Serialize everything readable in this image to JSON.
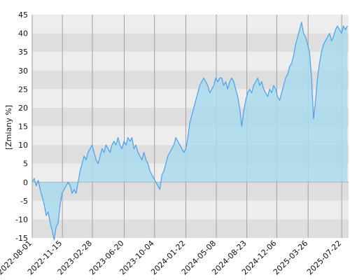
{
  "chart_data": {
    "type": "area",
    "ylabel": "[Zmiany %]",
    "ylim": [
      -15,
      45
    ],
    "y_ticks": [
      45,
      40,
      35,
      30,
      25,
      20,
      15,
      10,
      5,
      0,
      -5,
      -10,
      -15
    ],
    "x_tick_labels": [
      "2022-08-01",
      "2022-11-15",
      "2023-02-28",
      "2023-06-20",
      "2023-10-04",
      "2024-01-22",
      "2024-05-08",
      "2024-08-23",
      "2024-12-06",
      "2025-03-26",
      "2025-07-22"
    ],
    "x_range": [
      "2022-08-01",
      "2025-08-15"
    ],
    "grid": true,
    "colors": {
      "line": "#4c9fe8",
      "fill": "#a9d9ec",
      "band_light": "#ededed",
      "band_dark": "#dedede",
      "zero_line": "#a8b8c0",
      "v_grid": "#a0a0a0"
    },
    "series": [
      {
        "points": [
          [
            "2022-08-01",
            0
          ],
          [
            "2022-08-08",
            1
          ],
          [
            "2022-08-15",
            -1
          ],
          [
            "2022-08-22",
            0.5
          ],
          [
            "2022-08-29",
            -2
          ],
          [
            "2022-09-05",
            -4
          ],
          [
            "2022-09-12",
            -6
          ],
          [
            "2022-09-19",
            -9
          ],
          [
            "2022-09-26",
            -8
          ],
          [
            "2022-10-03",
            -11
          ],
          [
            "2022-10-10",
            -13
          ],
          [
            "2022-10-17",
            -15.5
          ],
          [
            "2022-10-24",
            -12
          ],
          [
            "2022-10-31",
            -11
          ],
          [
            "2022-11-07",
            -6
          ],
          [
            "2022-11-14",
            -3
          ],
          [
            "2022-11-21",
            -2
          ],
          [
            "2022-11-28",
            -1
          ],
          [
            "2022-12-05",
            0
          ],
          [
            "2022-12-12",
            -1
          ],
          [
            "2022-12-19",
            -3
          ],
          [
            "2022-12-26",
            -2
          ],
          [
            "2023-01-02",
            -3
          ],
          [
            "2023-01-09",
            0
          ],
          [
            "2023-01-16",
            3
          ],
          [
            "2023-01-23",
            5
          ],
          [
            "2023-01-30",
            7
          ],
          [
            "2023-02-06",
            6
          ],
          [
            "2023-02-13",
            8
          ],
          [
            "2023-02-20",
            9
          ],
          [
            "2023-02-27",
            10
          ],
          [
            "2023-03-06",
            8
          ],
          [
            "2023-03-13",
            6
          ],
          [
            "2023-03-20",
            5
          ],
          [
            "2023-03-27",
            7
          ],
          [
            "2023-04-03",
            9
          ],
          [
            "2023-04-10",
            8
          ],
          [
            "2023-04-17",
            10
          ],
          [
            "2023-04-24",
            9
          ],
          [
            "2023-05-01",
            8
          ],
          [
            "2023-05-08",
            10
          ],
          [
            "2023-05-15",
            11
          ],
          [
            "2023-05-22",
            10
          ],
          [
            "2023-05-29",
            12
          ],
          [
            "2023-06-05",
            10
          ],
          [
            "2023-06-12",
            9
          ],
          [
            "2023-06-19",
            11
          ],
          [
            "2023-06-26",
            10
          ],
          [
            "2023-07-03",
            12
          ],
          [
            "2023-07-10",
            11
          ],
          [
            "2023-07-17",
            12
          ],
          [
            "2023-07-24",
            9
          ],
          [
            "2023-07-31",
            10
          ],
          [
            "2023-08-07",
            8
          ],
          [
            "2023-08-14",
            7
          ],
          [
            "2023-08-21",
            6
          ],
          [
            "2023-08-28",
            8
          ],
          [
            "2023-09-04",
            6
          ],
          [
            "2023-09-11",
            5
          ],
          [
            "2023-09-18",
            3
          ],
          [
            "2023-09-25",
            2
          ],
          [
            "2023-10-02",
            1
          ],
          [
            "2023-10-09",
            0
          ],
          [
            "2023-10-16",
            -1
          ],
          [
            "2023-10-23",
            -2
          ],
          [
            "2023-10-30",
            2
          ],
          [
            "2023-11-06",
            3
          ],
          [
            "2023-11-13",
            5
          ],
          [
            "2023-11-20",
            7
          ],
          [
            "2023-11-27",
            8
          ],
          [
            "2023-12-04",
            9
          ],
          [
            "2023-12-11",
            10
          ],
          [
            "2023-12-18",
            12
          ],
          [
            "2023-12-25",
            11
          ],
          [
            "2024-01-01",
            10
          ],
          [
            "2024-01-08",
            9
          ],
          [
            "2024-01-15",
            8
          ],
          [
            "2024-01-22",
            9
          ],
          [
            "2024-01-29",
            12
          ],
          [
            "2024-02-05",
            16
          ],
          [
            "2024-02-12",
            18
          ],
          [
            "2024-02-19",
            20
          ],
          [
            "2024-02-26",
            22
          ],
          [
            "2024-03-04",
            24
          ],
          [
            "2024-03-11",
            26
          ],
          [
            "2024-03-18",
            27
          ],
          [
            "2024-03-25",
            28
          ],
          [
            "2024-04-01",
            27
          ],
          [
            "2024-04-08",
            26
          ],
          [
            "2024-04-15",
            24
          ],
          [
            "2024-04-22",
            25
          ],
          [
            "2024-04-29",
            26
          ],
          [
            "2024-05-06",
            28
          ],
          [
            "2024-05-13",
            27
          ],
          [
            "2024-05-20",
            28
          ],
          [
            "2024-05-27",
            28
          ],
          [
            "2024-06-03",
            26
          ],
          [
            "2024-06-10",
            27
          ],
          [
            "2024-06-17",
            25
          ],
          [
            "2024-06-24",
            27
          ],
          [
            "2024-07-01",
            28
          ],
          [
            "2024-07-08",
            27
          ],
          [
            "2024-07-15",
            25
          ],
          [
            "2024-07-22",
            23
          ],
          [
            "2024-07-29",
            20
          ],
          [
            "2024-08-05",
            15
          ],
          [
            "2024-08-12",
            19
          ],
          [
            "2024-08-19",
            22
          ],
          [
            "2024-08-26",
            24
          ],
          [
            "2024-09-02",
            25
          ],
          [
            "2024-09-09",
            24
          ],
          [
            "2024-09-16",
            26
          ],
          [
            "2024-09-23",
            27
          ],
          [
            "2024-09-30",
            28
          ],
          [
            "2024-10-07",
            26
          ],
          [
            "2024-10-14",
            27
          ],
          [
            "2024-10-21",
            25
          ],
          [
            "2024-10-28",
            24
          ],
          [
            "2024-11-04",
            23
          ],
          [
            "2024-11-11",
            25
          ],
          [
            "2024-11-18",
            24
          ],
          [
            "2024-11-25",
            26
          ],
          [
            "2024-12-02",
            25
          ],
          [
            "2024-12-09",
            23
          ],
          [
            "2024-12-16",
            22
          ],
          [
            "2024-12-23",
            24
          ],
          [
            "2024-12-30",
            26
          ],
          [
            "2025-01-06",
            28
          ],
          [
            "2025-01-13",
            29
          ],
          [
            "2025-01-20",
            31
          ],
          [
            "2025-01-27",
            32
          ],
          [
            "2025-02-03",
            34
          ],
          [
            "2025-02-10",
            37
          ],
          [
            "2025-02-17",
            39
          ],
          [
            "2025-02-24",
            41
          ],
          [
            "2025-03-03",
            43
          ],
          [
            "2025-03-10",
            40
          ],
          [
            "2025-03-17",
            39
          ],
          [
            "2025-03-24",
            37
          ],
          [
            "2025-03-31",
            35
          ],
          [
            "2025-04-07",
            28
          ],
          [
            "2025-04-14",
            17
          ],
          [
            "2025-04-21",
            22
          ],
          [
            "2025-04-28",
            28
          ],
          [
            "2025-05-05",
            32
          ],
          [
            "2025-05-12",
            35
          ],
          [
            "2025-05-19",
            37
          ],
          [
            "2025-05-26",
            38
          ],
          [
            "2025-06-02",
            39
          ],
          [
            "2025-06-09",
            40
          ],
          [
            "2025-06-16",
            38
          ],
          [
            "2025-06-23",
            39
          ],
          [
            "2025-06-30",
            41
          ],
          [
            "2025-07-07",
            42
          ],
          [
            "2025-07-14",
            41
          ],
          [
            "2025-07-21",
            40
          ],
          [
            "2025-07-28",
            42
          ],
          [
            "2025-08-04",
            41
          ],
          [
            "2025-08-11",
            42
          ]
        ]
      }
    ]
  }
}
